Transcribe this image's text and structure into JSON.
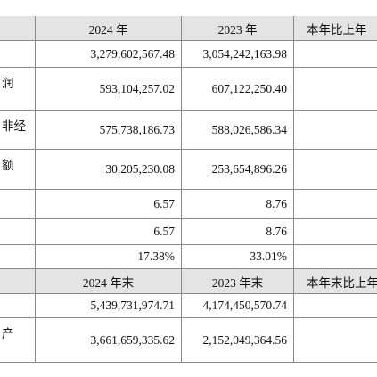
{
  "table": {
    "rows": [
      {
        "cells": [
          null,
          "2024 年",
          "2023 年",
          "本年比上年"
        ]
      },
      {
        "cells": [
          null,
          "3,279,602,567.48",
          "3,054,242,163.98",
          null
        ]
      },
      {
        "cells": [
          "润",
          "593,104,257.02",
          "607,122,250.40",
          null
        ]
      },
      {
        "cells": [
          "非经",
          "575,738,186.73",
          "588,026,586.34",
          null
        ]
      },
      {
        "cells": [
          "额",
          "30,205,230.08",
          "253,654,896.26",
          null
        ]
      },
      {
        "cells": [
          null,
          "6.57",
          "8.76",
          null
        ]
      },
      {
        "cells": [
          null,
          "6.57",
          "8.76",
          null
        ]
      },
      {
        "cells": [
          null,
          "17.38%",
          "33.01%",
          null
        ]
      },
      {
        "cells": [
          null,
          "2024 年末",
          "2023 年末",
          "本年末比上年"
        ]
      },
      {
        "cells": [
          null,
          "5,439,731,974.71",
          "4,174,450,570.74",
          null
        ]
      },
      {
        "cells": [
          "产",
          "3,661,659,335.62",
          "2,152,049,364.56",
          null
        ]
      }
    ]
  }
}
